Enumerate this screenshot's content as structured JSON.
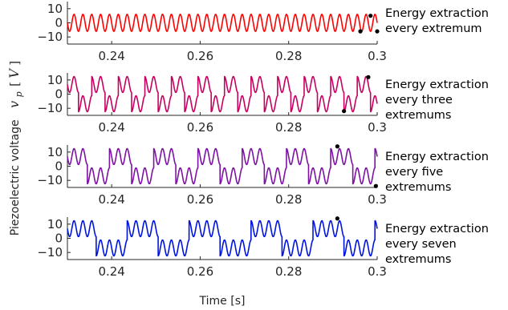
{
  "colors": {
    "axis": "#262626",
    "marker": "#000000",
    "series": [
      "#ff0000",
      "#c70060",
      "#7d12a4",
      "#0014e0"
    ]
  },
  "labels": {
    "ylabel_text": "Piezoelectric voltage",
    "ylabel_symbol": "v",
    "ylabel_subscript": "p",
    "ylabel_unit_open": "[",
    "ylabel_unit": "V",
    "ylabel_unit_close": "]",
    "xlabel": "Time [s]"
  },
  "chart_data": [
    {
      "type": "line",
      "annotation_lines": [
        "Energy extraction",
        "every extremum"
      ],
      "xlim": [
        0.23,
        0.3
      ],
      "ylim": [
        -15,
        15
      ],
      "xticks": [
        "0.24",
        "0.26",
        "0.28",
        "0.3"
      ],
      "yticks": [
        "10",
        "0",
        "−10"
      ],
      "series": [
        {
          "color": "#ff0000",
          "extremum_step": 1,
          "switch_times": []
        }
      ],
      "markers": [
        {
          "x": 0.2962,
          "y": -6
        },
        {
          "x": 0.2985,
          "y": 5
        },
        {
          "x": 0.3,
          "y": -6
        }
      ]
    },
    {
      "type": "line",
      "annotation_lines": [
        "Energy extraction",
        "every three",
        "extremums"
      ],
      "xlim": [
        0.23,
        0.3
      ],
      "ylim": [
        -15,
        15
      ],
      "xticks": [
        "0.24",
        "0.26",
        "0.28",
        "0.3"
      ],
      "yticks": [
        "10",
        "0",
        "−10"
      ],
      "series": [
        {
          "color": "#c70060",
          "extremum_step": 3,
          "switch_times": []
        }
      ],
      "markers": [
        {
          "x": 0.2925,
          "y": -12
        },
        {
          "x": 0.298,
          "y": 12
        }
      ]
    },
    {
      "type": "line",
      "annotation_lines": [
        "Energy extraction",
        "every five",
        "extremums"
      ],
      "xlim": [
        0.23,
        0.3
      ],
      "ylim": [
        -15,
        15
      ],
      "xticks": [
        "0.24",
        "0.26",
        "0.28",
        "0.3"
      ],
      "yticks": [
        "10",
        "0",
        "−10"
      ],
      "series": [
        {
          "color": "#7d12a4",
          "extremum_step": 5,
          "switch_times": []
        }
      ],
      "markers": [
        {
          "x": 0.291,
          "y": 14
        },
        {
          "x": 0.2997,
          "y": -14
        }
      ]
    },
    {
      "type": "line",
      "annotation_lines": [
        "Energy extraction",
        "every seven",
        "extremums"
      ],
      "xlim": [
        0.23,
        0.3
      ],
      "ylim": [
        -15,
        15
      ],
      "xticks": [
        "0.24",
        "0.26",
        "0.28",
        "0.3"
      ],
      "yticks": [
        "10",
        "0",
        "−10"
      ],
      "series": [
        {
          "color": "#0014e0",
          "extremum_step": 7,
          "switch_times": []
        }
      ],
      "markers": [
        {
          "x": 0.291,
          "y": 14
        }
      ]
    }
  ]
}
